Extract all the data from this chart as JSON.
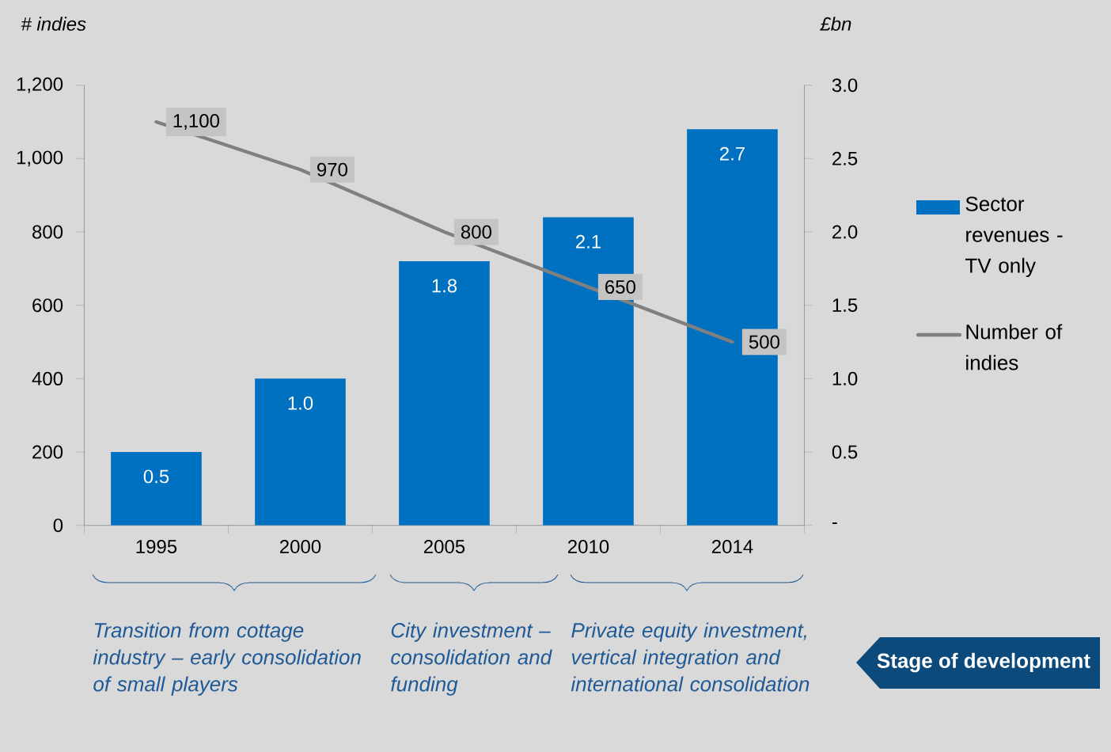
{
  "chart_data": {
    "type": "bar",
    "ylabel": "# indies",
    "y2label": "£bn",
    "categories": [
      "1995",
      "2000",
      "2005",
      "2010",
      "2014"
    ],
    "series": [
      {
        "name": "Sector revenues - TV only",
        "axis": "y2",
        "color": "#0070c0",
        "values": [
          0.5,
          1.0,
          1.8,
          2.1,
          2.7
        ],
        "value_labels": [
          "0.5",
          "1.0",
          "1.8",
          "2.1",
          "2.7"
        ]
      },
      {
        "name": "Number of indies",
        "type": "line",
        "color": "#808080",
        "values": [
          1100,
          970,
          800,
          650,
          500
        ],
        "value_labels": [
          "1,100",
          "970",
          "800",
          "650",
          "500"
        ]
      }
    ],
    "ylim": [
      0,
      1200
    ],
    "yticks": [
      0,
      200,
      400,
      600,
      800,
      {
        "value": 1000,
        "label": "1,000"
      },
      {
        "value": 1200,
        "label": "1,200"
      }
    ],
    "y2lim": [
      0,
      3
    ],
    "y2ticks": [
      {
        "value": 0,
        "label": "-"
      },
      0.5,
      {
        "value": 1,
        "label": "1.0"
      },
      1.5,
      {
        "value": 2,
        "label": "2.0"
      },
      2.5,
      {
        "value": 3,
        "label": "3.0"
      }
    ],
    "legend": "right",
    "grid": false,
    "marker": "none",
    "line_style": "solid",
    "annotations": [
      "Transition from cottage industry – early consolidation of small players",
      "City investment – consolidation and funding",
      "Private equity investment, vertical integration and international consolidation",
      "Stage of development"
    ]
  }
}
